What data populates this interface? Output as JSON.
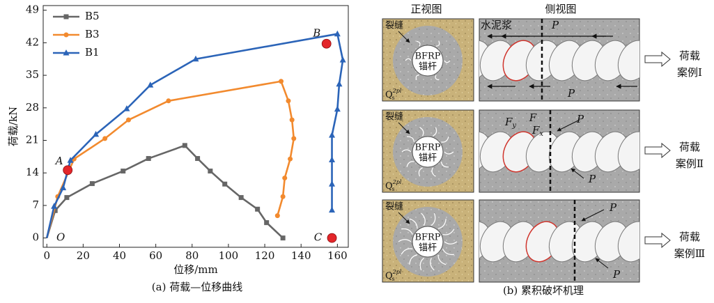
{
  "chart_data": {
    "type": "line",
    "caption": "(a) 荷载—位移曲线",
    "x_label": "位移/mm",
    "y_label": "荷载/kN",
    "xlim": [
      -2,
      166
    ],
    "xticks": [
      0,
      20,
      40,
      60,
      80,
      100,
      120,
      140,
      160
    ],
    "ylim": [
      -2,
      50
    ],
    "yticks": [
      0,
      7,
      14,
      21,
      28,
      35,
      42,
      49
    ],
    "legend": "upper-left",
    "series": [
      {
        "name": "B5",
        "color": "#666666",
        "marker": "square",
        "x": [
          0,
          4.6,
          11,
          25,
          42,
          56,
          76,
          83,
          90,
          98,
          107,
          116,
          121,
          130
        ],
        "values": [
          0,
          5.9,
          8.7,
          11.7,
          14.4,
          17.1,
          19.9,
          17.1,
          14.4,
          11.6,
          8.7,
          6.2,
          3.3,
          0
        ]
      },
      {
        "name": "B3",
        "color": "#f28a2e",
        "marker": "circle",
        "x": [
          0,
          6,
          15,
          32,
          45,
          67,
          129,
          133,
          135,
          136,
          134,
          131,
          130,
          127
        ],
        "values": [
          0,
          8.9,
          17,
          21.4,
          25.4,
          29.5,
          33.7,
          29.5,
          25.4,
          21.4,
          17,
          12.9,
          8.9,
          4.8
        ]
      },
      {
        "name": "B1",
        "color": "#2b64b8",
        "marker": "triangle",
        "x": [
          0,
          4,
          9,
          13,
          27,
          44,
          57,
          82,
          160,
          163,
          161,
          160,
          157,
          157,
          157,
          157
        ],
        "values": [
          0,
          6.8,
          10.8,
          16.7,
          22.3,
          27.8,
          32.9,
          38.5,
          43.9,
          38.3,
          33.1,
          27.7,
          22.1,
          16.8,
          11.6,
          6
        ]
      }
    ],
    "points": [
      {
        "label": "A",
        "x": 11.5,
        "y": 14.6
      },
      {
        "label": "B",
        "x": 154,
        "y": 41.8
      },
      {
        "label": "C",
        "x": 157,
        "y": 0
      }
    ],
    "origin_label": "O"
  },
  "diagram": {
    "front_title": "正视图",
    "side_title": "侧视图",
    "caption": "(b) 累积破坏机理",
    "rows": [
      {
        "crack": "裂缝",
        "anchor": [
          "BFRP",
          "锚杆"
        ],
        "soil": {
          "base": "Q",
          "sub": "s",
          "sup": "2pl"
        },
        "side_labels": [
          "水泥浆",
          "P",
          "P"
        ],
        "load": "荷载",
        "case": "案例Ⅰ"
      },
      {
        "crack": "裂缝",
        "anchor": [
          "BFRP",
          "锚杆"
        ],
        "soil": {
          "base": "Q",
          "sub": "s",
          "sup": "2pl"
        },
        "side_labels": [
          {
            "base": "F",
            "sub": "y"
          },
          "F",
          {
            "base": "F",
            "sub": "x"
          },
          "P",
          "P"
        ],
        "load": "荷载",
        "case": "案例Ⅱ"
      },
      {
        "crack": "裂缝",
        "anchor": [
          "BFRP",
          "锚杆"
        ],
        "soil": {
          "base": "Q",
          "sub": "s",
          "sup": "2pl"
        },
        "side_labels": [
          "P",
          "P"
        ],
        "load": "荷载",
        "case": "案例Ⅲ"
      }
    ]
  }
}
